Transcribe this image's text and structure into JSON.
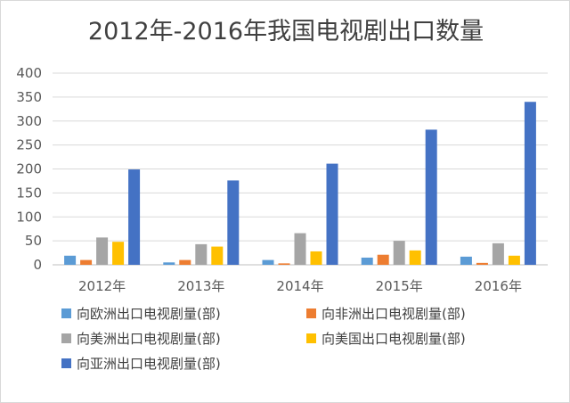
{
  "chart_data": {
    "type": "bar",
    "title": "2012年-2016年我国电视剧出口数量",
    "xlabel": "",
    "ylabel": "",
    "categories": [
      "2012年",
      "2013年",
      "2014年",
      "2015年",
      "2016年"
    ],
    "ylim": [
      0,
      400
    ],
    "yticks": [
      0,
      50,
      100,
      150,
      200,
      250,
      300,
      350,
      400
    ],
    "grid": true,
    "legend_position": "bottom",
    "series": [
      {
        "name": "向欧洲出口电视剧量(部)",
        "color": "#5b9bd5",
        "values": [
          19,
          5,
          10,
          15,
          17
        ]
      },
      {
        "name": "向非洲出口电视剧量(部)",
        "color": "#ed7d31",
        "values": [
          10,
          10,
          3,
          21,
          4
        ]
      },
      {
        "name": "向美洲出口电视剧量(部)",
        "color": "#a5a5a5",
        "values": [
          57,
          43,
          66,
          50,
          45
        ]
      },
      {
        "name": "向美国出口电视剧量(部)",
        "color": "#ffc000",
        "values": [
          48,
          38,
          28,
          30,
          19
        ]
      },
      {
        "name": "向亚洲出口电视剧量(部)",
        "color": "#4472c4",
        "values": [
          199,
          176,
          211,
          282,
          340
        ]
      }
    ]
  }
}
